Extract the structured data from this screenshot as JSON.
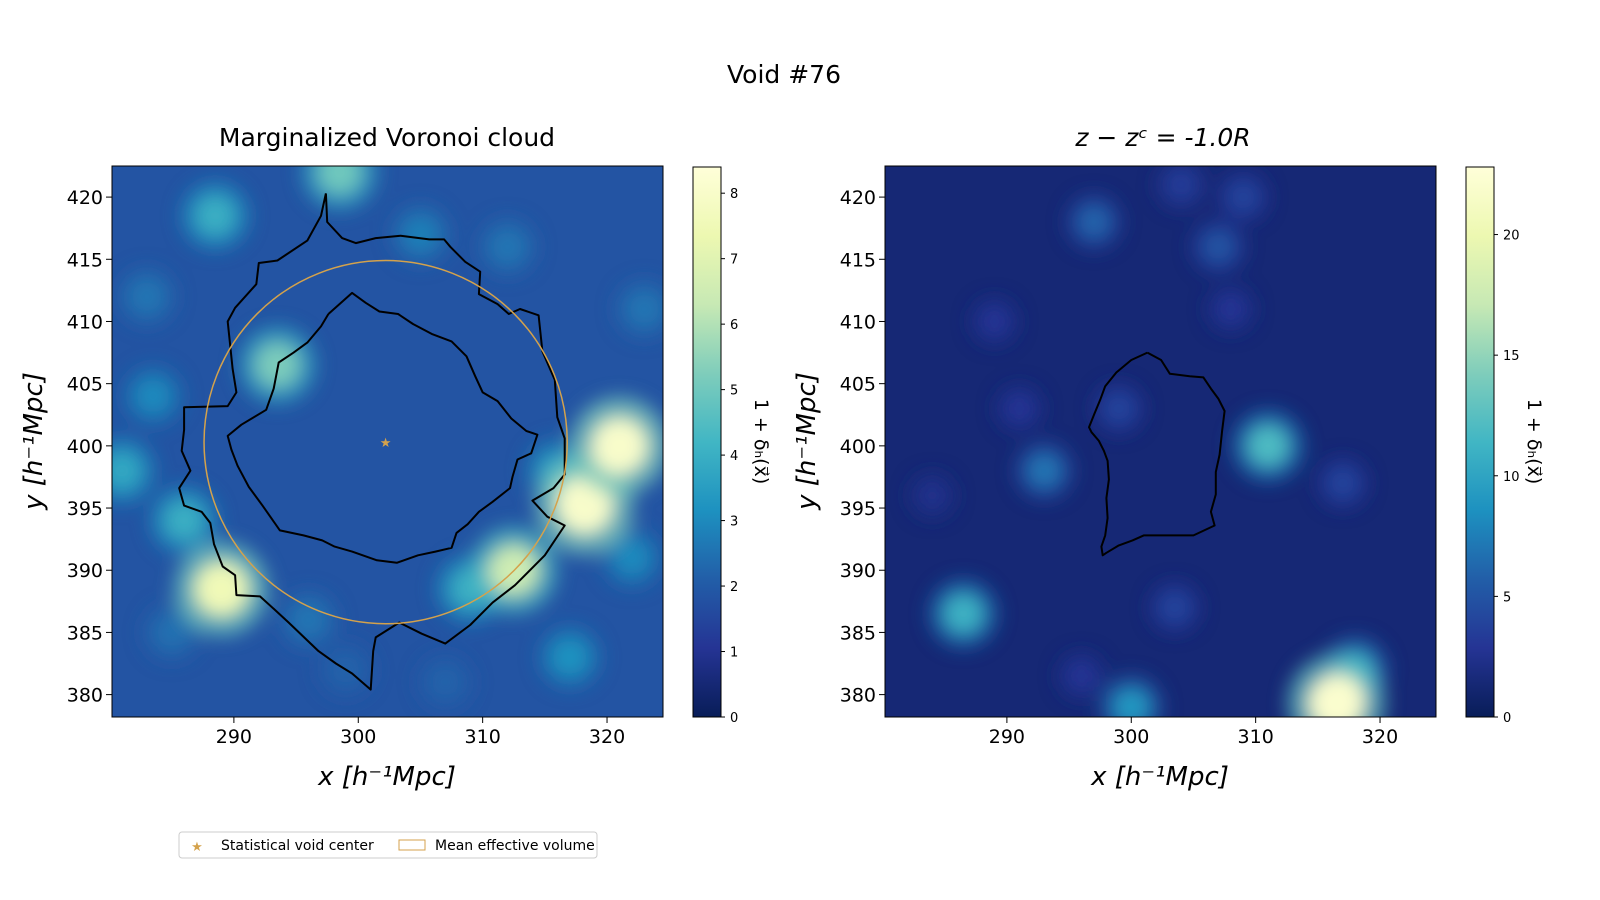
{
  "suptitle": "Void #76",
  "legend": {
    "items": [
      {
        "label": "Statistical void center",
        "marker": "star",
        "color": "#d4a24c"
      },
      {
        "label": "Mean effective volume",
        "marker": "rect-outline",
        "color": "#d4a24c"
      }
    ]
  },
  "colors": {
    "accent_gold": "#d4a24c",
    "contour": "#000000",
    "colormap": "YlGnBu"
  },
  "chart_data": [
    {
      "type": "heatmap",
      "title": "Marginalized Voronoi cloud",
      "xlabel": "x [h⁻¹Mpc]",
      "ylabel": "y [h⁻¹Mpc]",
      "xlim": [
        280.2,
        324.5
      ],
      "ylim": [
        378.2,
        422.5
      ],
      "xticks": [
        290,
        300,
        310,
        320
      ],
      "yticks": [
        380,
        385,
        390,
        395,
        400,
        405,
        410,
        415,
        420
      ],
      "colorbar": {
        "label": "1 + δₕ(x⃗)",
        "range": [
          0,
          8.4
        ],
        "ticks": [
          0,
          1,
          2,
          3,
          4,
          5,
          6,
          7,
          8
        ]
      },
      "void_center": [
        302.2,
        400.3
      ],
      "mean_effective_radius": 14.6,
      "hotspots": [
        {
          "x": 289,
          "y": 388.5,
          "v": 7.5
        },
        {
          "x": 293.5,
          "y": 406.5,
          "v": 5.2
        },
        {
          "x": 298.5,
          "y": 422,
          "v": 5.0
        },
        {
          "x": 312.5,
          "y": 390,
          "v": 6.5
        },
        {
          "x": 318.2,
          "y": 395.2,
          "v": 8.0
        },
        {
          "x": 321,
          "y": 400,
          "v": 8.0
        },
        {
          "x": 286,
          "y": 394,
          "v": 4.0
        },
        {
          "x": 281,
          "y": 398,
          "v": 3.8
        },
        {
          "x": 288.5,
          "y": 418.5,
          "v": 4.0
        },
        {
          "x": 283.5,
          "y": 404,
          "v": 3.0
        },
        {
          "x": 309,
          "y": 388.5,
          "v": 4.0
        },
        {
          "x": 316,
          "y": 398,
          "v": 3.5
        },
        {
          "x": 322,
          "y": 391,
          "v": 3.0
        },
        {
          "x": 317,
          "y": 383,
          "v": 3.2
        },
        {
          "x": 296,
          "y": 386,
          "v": 2.6
        },
        {
          "x": 299,
          "y": 382,
          "v": 2.2
        },
        {
          "x": 305,
          "y": 417,
          "v": 2.8
        },
        {
          "x": 312,
          "y": 416,
          "v": 2.6
        },
        {
          "x": 283,
          "y": 412,
          "v": 2.6
        },
        {
          "x": 323,
          "y": 411,
          "v": 2.6
        },
        {
          "x": 285,
          "y": 385,
          "v": 2.5
        },
        {
          "x": 307,
          "y": 381,
          "v": 2.2
        }
      ],
      "contours": [
        [
          [
            297.4,
            420.3
          ],
          [
            297.0,
            418.5
          ],
          [
            295.9,
            416.5
          ],
          [
            293.5,
            414.9
          ],
          [
            292.0,
            414.7
          ],
          [
            291.8,
            413.0
          ],
          [
            290.1,
            411.1
          ],
          [
            289.5,
            410.0
          ],
          [
            289.9,
            406.2
          ],
          [
            290.2,
            404.3
          ],
          [
            289.5,
            403.2
          ],
          [
            286.0,
            403.1
          ],
          [
            286.0,
            401.3
          ],
          [
            285.8,
            399.6
          ],
          [
            286.5,
            398.0
          ],
          [
            285.6,
            396.6
          ],
          [
            286.0,
            395.2
          ],
          [
            287.4,
            394.7
          ],
          [
            288.1,
            393.8
          ],
          [
            288.4,
            392.1
          ],
          [
            289.1,
            390.3
          ],
          [
            290.1,
            389.6
          ],
          [
            290.2,
            388.0
          ],
          [
            292.1,
            387.9
          ],
          [
            293.2,
            386.9
          ],
          [
            294.4,
            385.8
          ],
          [
            296.8,
            383.5
          ],
          [
            298.2,
            382.5
          ],
          [
            299.5,
            381.7
          ],
          [
            301.0,
            380.4
          ],
          [
            301.2,
            383.5
          ],
          [
            301.4,
            384.6
          ],
          [
            303.3,
            385.8
          ],
          [
            305.1,
            384.9
          ],
          [
            307.0,
            384.1
          ],
          [
            309.0,
            385.6
          ],
          [
            310.8,
            387.4
          ],
          [
            312.6,
            388.8
          ],
          [
            315.0,
            391.2
          ],
          [
            316.6,
            393.6
          ],
          [
            315.2,
            394.3
          ],
          [
            314.0,
            395.6
          ],
          [
            315.7,
            396.6
          ],
          [
            316.6,
            397.7
          ],
          [
            316.6,
            400.6
          ],
          [
            316.0,
            402.3
          ],
          [
            315.8,
            405.3
          ],
          [
            314.8,
            407.6
          ],
          [
            314.5,
            410.5
          ],
          [
            313.0,
            411.0
          ],
          [
            312.1,
            410.6
          ],
          [
            311.2,
            411.4
          ],
          [
            309.7,
            412.2
          ],
          [
            309.8,
            414.0
          ],
          [
            308.6,
            414.8
          ],
          [
            307.4,
            416.0
          ],
          [
            306.9,
            416.6
          ],
          [
            305.7,
            416.6
          ],
          [
            303.4,
            416.9
          ],
          [
            301.4,
            416.7
          ],
          [
            299.8,
            416.3
          ],
          [
            298.7,
            416.7
          ],
          [
            297.5,
            418.0
          ],
          [
            297.4,
            420.3
          ]
        ],
        [
          [
            297.6,
            410.6
          ],
          [
            299.5,
            412.3
          ],
          [
            300.6,
            411.5
          ],
          [
            301.7,
            410.8
          ],
          [
            303.2,
            410.6
          ],
          [
            304.4,
            409.8
          ],
          [
            305.9,
            409.0
          ],
          [
            307.5,
            408.4
          ],
          [
            308.7,
            407.2
          ],
          [
            309.4,
            405.6
          ],
          [
            310.0,
            404.3
          ],
          [
            311.2,
            403.6
          ],
          [
            312.3,
            402.2
          ],
          [
            313.5,
            401.2
          ],
          [
            314.4,
            400.9
          ],
          [
            313.9,
            399.4
          ],
          [
            312.8,
            398.9
          ],
          [
            312.4,
            397.5
          ],
          [
            312.2,
            396.6
          ],
          [
            310.8,
            395.5
          ],
          [
            309.7,
            394.7
          ],
          [
            308.8,
            393.7
          ],
          [
            307.9,
            393.0
          ],
          [
            307.5,
            391.8
          ],
          [
            306.2,
            391.5
          ],
          [
            304.8,
            391.2
          ],
          [
            303.1,
            390.6
          ],
          [
            301.5,
            390.8
          ],
          [
            299.5,
            391.5
          ],
          [
            298.1,
            391.9
          ],
          [
            297.1,
            392.4
          ],
          [
            295.6,
            392.8
          ],
          [
            293.7,
            393.2
          ],
          [
            292.3,
            395.2
          ],
          [
            291.2,
            396.7
          ],
          [
            290.3,
            398.4
          ],
          [
            289.8,
            399.7
          ],
          [
            289.5,
            400.8
          ],
          [
            290.6,
            401.7
          ],
          [
            292.6,
            402.9
          ],
          [
            293.2,
            404.6
          ],
          [
            293.6,
            406.7
          ],
          [
            294.8,
            407.5
          ],
          [
            295.9,
            408.3
          ],
          [
            297.0,
            409.6
          ],
          [
            297.6,
            410.6
          ]
        ]
      ]
    },
    {
      "type": "heatmap",
      "title": "z − zᶜ = -1.0R",
      "xlabel": "x [h⁻¹Mpc]",
      "ylabel": "y [h⁻¹Mpc]",
      "xlim": [
        280.2,
        324.5
      ],
      "ylim": [
        378.2,
        422.5
      ],
      "xticks": [
        290,
        300,
        310,
        320
      ],
      "yticks": [
        380,
        385,
        390,
        395,
        400,
        405,
        410,
        415,
        420
      ],
      "colorbar": {
        "label": "1 + δₕ(x⃗)",
        "range": [
          0,
          22.8
        ],
        "ticks": [
          0,
          5,
          10,
          15,
          20
        ]
      },
      "hotspots": [
        {
          "x": 311,
          "y": 400,
          "v": 12
        },
        {
          "x": 286.5,
          "y": 386.5,
          "v": 11
        },
        {
          "x": 316.5,
          "y": 379.3,
          "v": 22
        },
        {
          "x": 318,
          "y": 382,
          "v": 10
        },
        {
          "x": 300,
          "y": 379,
          "v": 9
        },
        {
          "x": 293,
          "y": 398,
          "v": 7
        },
        {
          "x": 297,
          "y": 418,
          "v": 6
        },
        {
          "x": 307,
          "y": 416,
          "v": 5
        },
        {
          "x": 309,
          "y": 420,
          "v": 4
        },
        {
          "x": 303.5,
          "y": 387,
          "v": 4
        },
        {
          "x": 299,
          "y": 403,
          "v": 4
        },
        {
          "x": 317,
          "y": 397,
          "v": 4
        },
        {
          "x": 289,
          "y": 410,
          "v": 3
        },
        {
          "x": 308,
          "y": 411,
          "v": 3
        },
        {
          "x": 291,
          "y": 403,
          "v": 3
        },
        {
          "x": 304,
          "y": 421,
          "v": 3.5
        },
        {
          "x": 296,
          "y": 381.5,
          "v": 3
        },
        {
          "x": 284,
          "y": 396,
          "v": 2.5
        }
      ],
      "contours": [
        [
          [
            301.3,
            407.5
          ],
          [
            302.4,
            406.9
          ],
          [
            303.1,
            405.8
          ],
          [
            304.7,
            405.6
          ],
          [
            305.8,
            405.5
          ],
          [
            306.4,
            404.6
          ],
          [
            307.0,
            403.8
          ],
          [
            307.5,
            402.8
          ],
          [
            307.3,
            401.2
          ],
          [
            307.1,
            399.3
          ],
          [
            306.8,
            397.9
          ],
          [
            306.8,
            396.1
          ],
          [
            306.4,
            394.7
          ],
          [
            306.7,
            393.6
          ],
          [
            305.0,
            392.8
          ],
          [
            303.2,
            392.8
          ],
          [
            301.0,
            392.8
          ],
          [
            300.1,
            392.4
          ],
          [
            299.0,
            392.0
          ],
          [
            298.0,
            391.4
          ],
          [
            297.7,
            391.2
          ],
          [
            297.6,
            391.9
          ],
          [
            297.9,
            392.8
          ],
          [
            298.1,
            394.2
          ],
          [
            298.0,
            395.8
          ],
          [
            298.2,
            397.3
          ],
          [
            298.1,
            398.8
          ],
          [
            297.8,
            399.6
          ],
          [
            297.4,
            400.4
          ],
          [
            296.8,
            401.1
          ],
          [
            296.6,
            401.5
          ],
          [
            297.0,
            402.5
          ],
          [
            297.5,
            403.7
          ],
          [
            297.9,
            404.8
          ],
          [
            298.8,
            405.9
          ],
          [
            300.0,
            406.9
          ],
          [
            301.3,
            407.5
          ]
        ]
      ]
    }
  ]
}
